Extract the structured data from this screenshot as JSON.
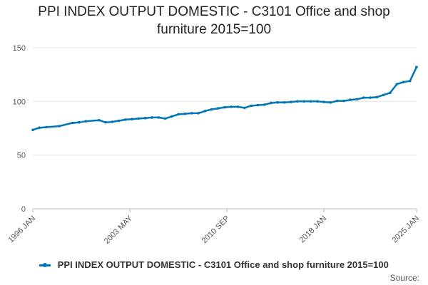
{
  "chart_data": {
    "type": "line",
    "title": "PPI INDEX OUTPUT DOMESTIC - C3101 Office and shop furniture 2015=100",
    "title_lines": [
      "PPI INDEX OUTPUT DOMESTIC - C3101 Office and shop",
      "furniture 2015=100"
    ],
    "xlabel": "",
    "ylabel": "",
    "ylim": [
      0,
      150
    ],
    "y_ticks": [
      0,
      50,
      100,
      150
    ],
    "x_tick_labels": [
      "1996 JAN",
      "2003 MAY",
      "2010 SEP",
      "2018 JAN",
      "2025 JAN"
    ],
    "x_range": [
      "1996 JAN",
      "2025 JAN"
    ],
    "grid": true,
    "legend_position": "bottom",
    "color": "#0077b5",
    "series": [
      {
        "name": "PPI INDEX OUTPUT DOMESTIC - C3101 Office and shop furniture 2015=100",
        "x": [
          "1996 JAN",
          "1996 JUL",
          "1997 JAN",
          "1998 JAN",
          "1999 JAN",
          "1999 JUL",
          "2000 JAN",
          "2001 JAN",
          "2001 JUL",
          "2002 JAN",
          "2002 JUL",
          "2003 JAN",
          "2003 JUL",
          "2004 JAN",
          "2004 JUL",
          "2005 JAN",
          "2005 JUL",
          "2006 JAN",
          "2006 JUL",
          "2007 JAN",
          "2007 JUL",
          "2008 JAN",
          "2008 JUL",
          "2009 JAN",
          "2009 JUL",
          "2010 JAN",
          "2010 JUL",
          "2011 JAN",
          "2011 JUL",
          "2012 JAN",
          "2012 JUL",
          "2013 JAN",
          "2013 JUL",
          "2014 JAN",
          "2014 JUL",
          "2015 JAN",
          "2015 JUL",
          "2016 JAN",
          "2016 JUL",
          "2017 JAN",
          "2017 JUL",
          "2018 JAN",
          "2018 JUL",
          "2019 JAN",
          "2019 JUL",
          "2020 JAN",
          "2020 JUL",
          "2021 JAN",
          "2021 JUL",
          "2022 JAN",
          "2022 JUL",
          "2023 JAN",
          "2023 JUL",
          "2024 JAN",
          "2024 JUL",
          "2025 JAN"
        ],
        "y": [
          73.5,
          75.5,
          76.0,
          77.0,
          80.0,
          80.5,
          81.5,
          82.5,
          80.5,
          81.0,
          82.0,
          83.0,
          83.5,
          84.0,
          84.5,
          85.0,
          85.0,
          84.0,
          86.0,
          88.0,
          88.5,
          89.0,
          89.0,
          91.0,
          92.5,
          93.5,
          94.5,
          95.0,
          95.0,
          94.0,
          96.0,
          96.5,
          97.0,
          98.5,
          99.0,
          99.0,
          99.5,
          100.0,
          100.0,
          100.0,
          100.0,
          99.5,
          99.0,
          100.5,
          100.5,
          101.5,
          102.0,
          103.5,
          103.5,
          104.0,
          106.0,
          108.0,
          116.0,
          118.0,
          119.0,
          132.0
        ]
      }
    ]
  },
  "legend": {
    "label": "PPI INDEX OUTPUT DOMESTIC - C3101 Office and shop furniture 2015=100"
  },
  "source": {
    "label": "Source:"
  }
}
